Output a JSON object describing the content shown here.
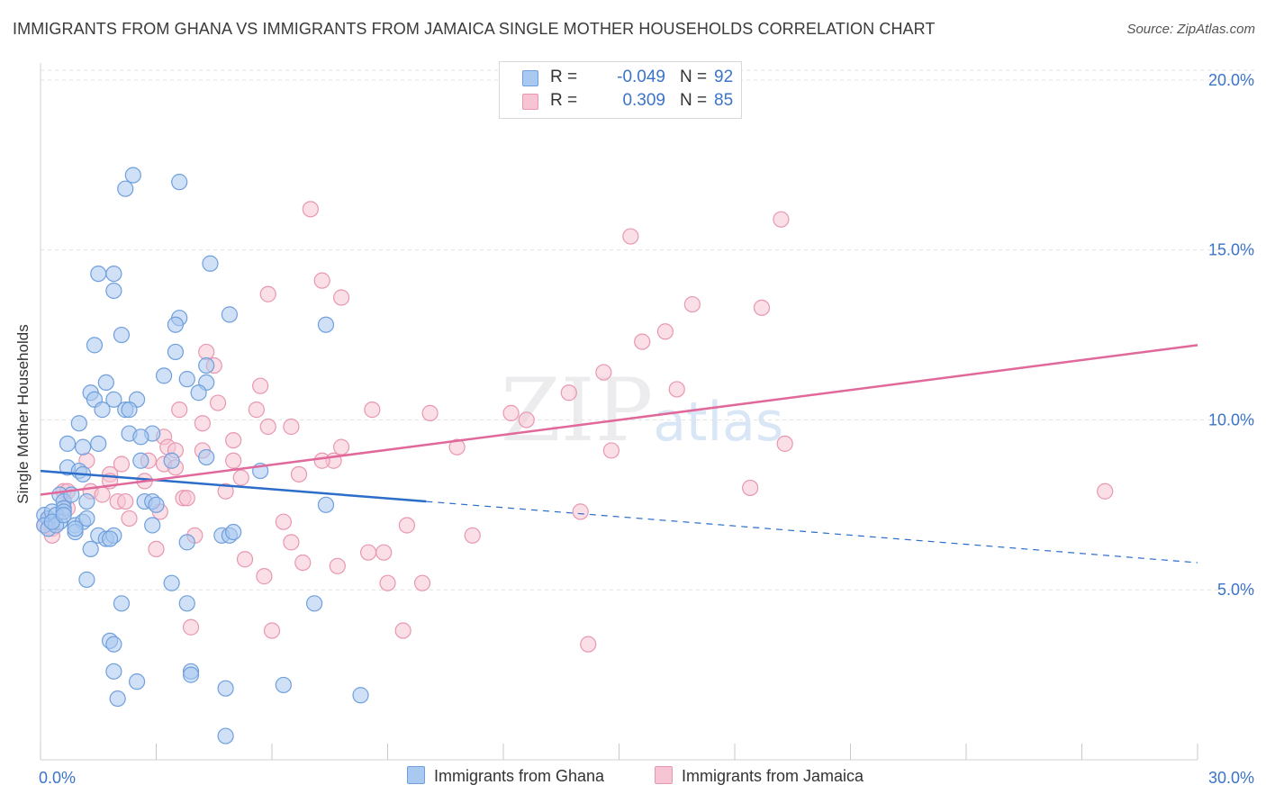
{
  "title": "IMMIGRANTS FROM GHANA VS IMMIGRANTS FROM JAMAICA SINGLE MOTHER HOUSEHOLDS CORRELATION CHART",
  "source": "Source: ZipAtlas.com",
  "watermark": {
    "zip": "ZIP",
    "atlas": "atlas"
  },
  "legend": {
    "rows": [
      {
        "r_label": "R =",
        "r_value": "-0.049",
        "n_label": "N =",
        "n_value": "92"
      },
      {
        "r_label": "R =",
        "r_value": "0.309",
        "n_label": "N =",
        "n_value": "85"
      }
    ]
  },
  "bottom_legend": [
    "Immigrants from Ghana",
    "Immigrants from Jamaica"
  ],
  "colors": {
    "ghana_fill": "#a9c9f0",
    "ghana_stroke": "#6f9fdc",
    "ghana_line": "#2b6dc9",
    "jamaica_fill": "#f7c4d4",
    "jamaica_stroke": "#e897b0",
    "jamaica_line": "#e0689a",
    "tick_label": "#3b74c8",
    "grid": "#e3e3e3"
  },
  "chart_data": {
    "type": "scatter",
    "title": "IMMIGRANTS FROM GHANA VS IMMIGRANTS FROM JAMAICA SINGLE MOTHER HOUSEHOLDS CORRELATION CHART",
    "xlabel": "",
    "ylabel": "Single Mother Households",
    "xlim": [
      0,
      30
    ],
    "ylim": [
      0,
      20.5
    ],
    "x_tick_labels": [
      "0.0%",
      "30.0%"
    ],
    "y_ticks": [
      5,
      10,
      15,
      20
    ],
    "y_tick_labels": [
      "5.0%",
      "10.0%",
      "15.0%",
      "20.0%"
    ],
    "grid": true,
    "legend_position": "top-center",
    "series": [
      {
        "name": "Immigrants from Ghana",
        "r": -0.049,
        "n": 92,
        "trend": {
          "x": [
            0,
            10.0
          ],
          "y": [
            8.5,
            7.6
          ],
          "dashed_extension": {
            "x": [
              10.0,
              30
            ],
            "y": [
              7.6,
              5.8
            ]
          }
        },
        "points": [
          [
            2.4,
            17.2
          ],
          [
            2.2,
            16.8
          ],
          [
            3.6,
            17.0
          ],
          [
            1.5,
            14.3
          ],
          [
            1.9,
            14.3
          ],
          [
            4.4,
            14.6
          ],
          [
            1.9,
            13.8
          ],
          [
            3.6,
            13.0
          ],
          [
            3.5,
            12.8
          ],
          [
            4.9,
            13.1
          ],
          [
            7.4,
            12.8
          ],
          [
            2.1,
            12.5
          ],
          [
            1.4,
            12.2
          ],
          [
            3.5,
            12.0
          ],
          [
            1.7,
            11.1
          ],
          [
            3.2,
            11.3
          ],
          [
            3.8,
            11.2
          ],
          [
            4.3,
            11.6
          ],
          [
            4.3,
            11.1
          ],
          [
            1.3,
            10.8
          ],
          [
            1.4,
            10.6
          ],
          [
            1.9,
            10.6
          ],
          [
            2.5,
            10.6
          ],
          [
            4.1,
            10.8
          ],
          [
            1.6,
            10.3
          ],
          [
            2.2,
            10.3
          ],
          [
            2.3,
            10.3
          ],
          [
            1.0,
            9.9
          ],
          [
            2.3,
            9.6
          ],
          [
            2.9,
            9.6
          ],
          [
            0.7,
            9.3
          ],
          [
            1.1,
            9.2
          ],
          [
            1.5,
            9.3
          ],
          [
            2.6,
            9.5
          ],
          [
            2.6,
            8.8
          ],
          [
            3.4,
            8.8
          ],
          [
            4.3,
            8.9
          ],
          [
            0.7,
            8.6
          ],
          [
            1.0,
            8.5
          ],
          [
            1.1,
            8.4
          ],
          [
            5.7,
            8.5
          ],
          [
            0.5,
            7.8
          ],
          [
            0.6,
            7.6
          ],
          [
            0.6,
            7.4
          ],
          [
            0.8,
            7.8
          ],
          [
            1.2,
            7.6
          ],
          [
            2.7,
            7.6
          ],
          [
            2.9,
            7.6
          ],
          [
            3.0,
            7.5
          ],
          [
            7.4,
            7.5
          ],
          [
            0.1,
            7.2
          ],
          [
            0.2,
            7.1
          ],
          [
            0.3,
            7.3
          ],
          [
            0.4,
            7.2
          ],
          [
            0.5,
            7.0
          ],
          [
            0.6,
            7.3
          ],
          [
            0.9,
            6.9
          ],
          [
            1.1,
            7.0
          ],
          [
            1.2,
            7.1
          ],
          [
            2.9,
            6.9
          ],
          [
            0.1,
            6.9
          ],
          [
            0.2,
            6.8
          ],
          [
            0.4,
            6.9
          ],
          [
            0.9,
            6.7
          ],
          [
            1.5,
            6.6
          ],
          [
            1.7,
            6.5
          ],
          [
            1.9,
            6.6
          ],
          [
            1.8,
            6.5
          ],
          [
            4.7,
            6.6
          ],
          [
            4.9,
            6.6
          ],
          [
            5.0,
            6.7
          ],
          [
            3.8,
            6.4
          ],
          [
            1.3,
            6.2
          ],
          [
            1.2,
            5.3
          ],
          [
            3.4,
            5.2
          ],
          [
            2.1,
            4.6
          ],
          [
            3.8,
            4.6
          ],
          [
            7.1,
            4.6
          ],
          [
            1.8,
            3.5
          ],
          [
            1.9,
            3.4
          ],
          [
            1.9,
            2.6
          ],
          [
            3.9,
            2.6
          ],
          [
            3.9,
            2.5
          ],
          [
            2.5,
            2.3
          ],
          [
            4.8,
            2.1
          ],
          [
            6.3,
            2.2
          ],
          [
            8.3,
            1.9
          ],
          [
            2.0,
            1.8
          ],
          [
            4.8,
            0.7
          ],
          [
            0.9,
            6.8
          ],
          [
            0.3,
            7.0
          ],
          [
            0.6,
            7.2
          ]
        ]
      },
      {
        "name": "Immigrants from Jamaica",
        "r": 0.309,
        "n": 85,
        "trend": {
          "x": [
            0,
            30
          ],
          "y": [
            7.8,
            12.2
          ]
        },
        "points": [
          [
            7.0,
            16.2
          ],
          [
            19.2,
            15.9
          ],
          [
            15.3,
            15.4
          ],
          [
            7.3,
            14.1
          ],
          [
            5.9,
            13.7
          ],
          [
            7.8,
            13.6
          ],
          [
            16.9,
            13.4
          ],
          [
            18.7,
            13.3
          ],
          [
            16.2,
            12.6
          ],
          [
            15.6,
            12.3
          ],
          [
            4.3,
            12.0
          ],
          [
            4.5,
            11.6
          ],
          [
            14.6,
            11.4
          ],
          [
            5.7,
            11.0
          ],
          [
            16.5,
            10.9
          ],
          [
            13.7,
            10.8
          ],
          [
            4.6,
            10.5
          ],
          [
            3.6,
            10.3
          ],
          [
            5.6,
            10.3
          ],
          [
            8.6,
            10.3
          ],
          [
            10.1,
            10.2
          ],
          [
            12.2,
            10.2
          ],
          [
            12.6,
            10.0
          ],
          [
            4.2,
            9.9
          ],
          [
            5.9,
            9.8
          ],
          [
            6.5,
            9.8
          ],
          [
            3.2,
            9.5
          ],
          [
            5.0,
            9.4
          ],
          [
            19.3,
            9.3
          ],
          [
            3.3,
            9.2
          ],
          [
            3.5,
            9.1
          ],
          [
            4.2,
            9.1
          ],
          [
            7.8,
            9.2
          ],
          [
            10.8,
            9.2
          ],
          [
            14.8,
            9.1
          ],
          [
            2.8,
            8.8
          ],
          [
            3.2,
            8.7
          ],
          [
            5.0,
            8.8
          ],
          [
            7.6,
            8.8
          ],
          [
            7.3,
            8.8
          ],
          [
            3.5,
            8.6
          ],
          [
            2.1,
            8.7
          ],
          [
            1.8,
            8.4
          ],
          [
            1.8,
            8.2
          ],
          [
            2.7,
            8.2
          ],
          [
            1.2,
            8.8
          ],
          [
            5.2,
            8.3
          ],
          [
            6.7,
            8.4
          ],
          [
            18.4,
            8.0
          ],
          [
            27.6,
            7.9
          ],
          [
            0.6,
            7.9
          ],
          [
            0.7,
            7.9
          ],
          [
            1.3,
            7.9
          ],
          [
            1.6,
            7.8
          ],
          [
            4.8,
            7.9
          ],
          [
            3.7,
            7.7
          ],
          [
            3.8,
            7.7
          ],
          [
            2.0,
            7.6
          ],
          [
            2.2,
            7.6
          ],
          [
            0.7,
            7.4
          ],
          [
            3.1,
            7.3
          ],
          [
            14.0,
            7.3
          ],
          [
            2.3,
            7.1
          ],
          [
            6.3,
            7.0
          ],
          [
            9.5,
            6.9
          ],
          [
            0.3,
            6.8
          ],
          [
            0.3,
            6.6
          ],
          [
            4.0,
            6.6
          ],
          [
            11.2,
            6.6
          ],
          [
            6.5,
            6.4
          ],
          [
            8.5,
            6.1
          ],
          [
            8.9,
            6.1
          ],
          [
            3.0,
            6.2
          ],
          [
            5.3,
            5.9
          ],
          [
            6.8,
            5.8
          ],
          [
            7.7,
            5.7
          ],
          [
            5.8,
            5.4
          ],
          [
            9.0,
            5.2
          ],
          [
            9.9,
            5.2
          ],
          [
            3.9,
            3.9
          ],
          [
            6.0,
            3.8
          ],
          [
            9.4,
            3.8
          ],
          [
            14.2,
            3.4
          ],
          [
            0.1,
            6.9
          ],
          [
            0.2,
            7.1
          ]
        ]
      }
    ]
  }
}
